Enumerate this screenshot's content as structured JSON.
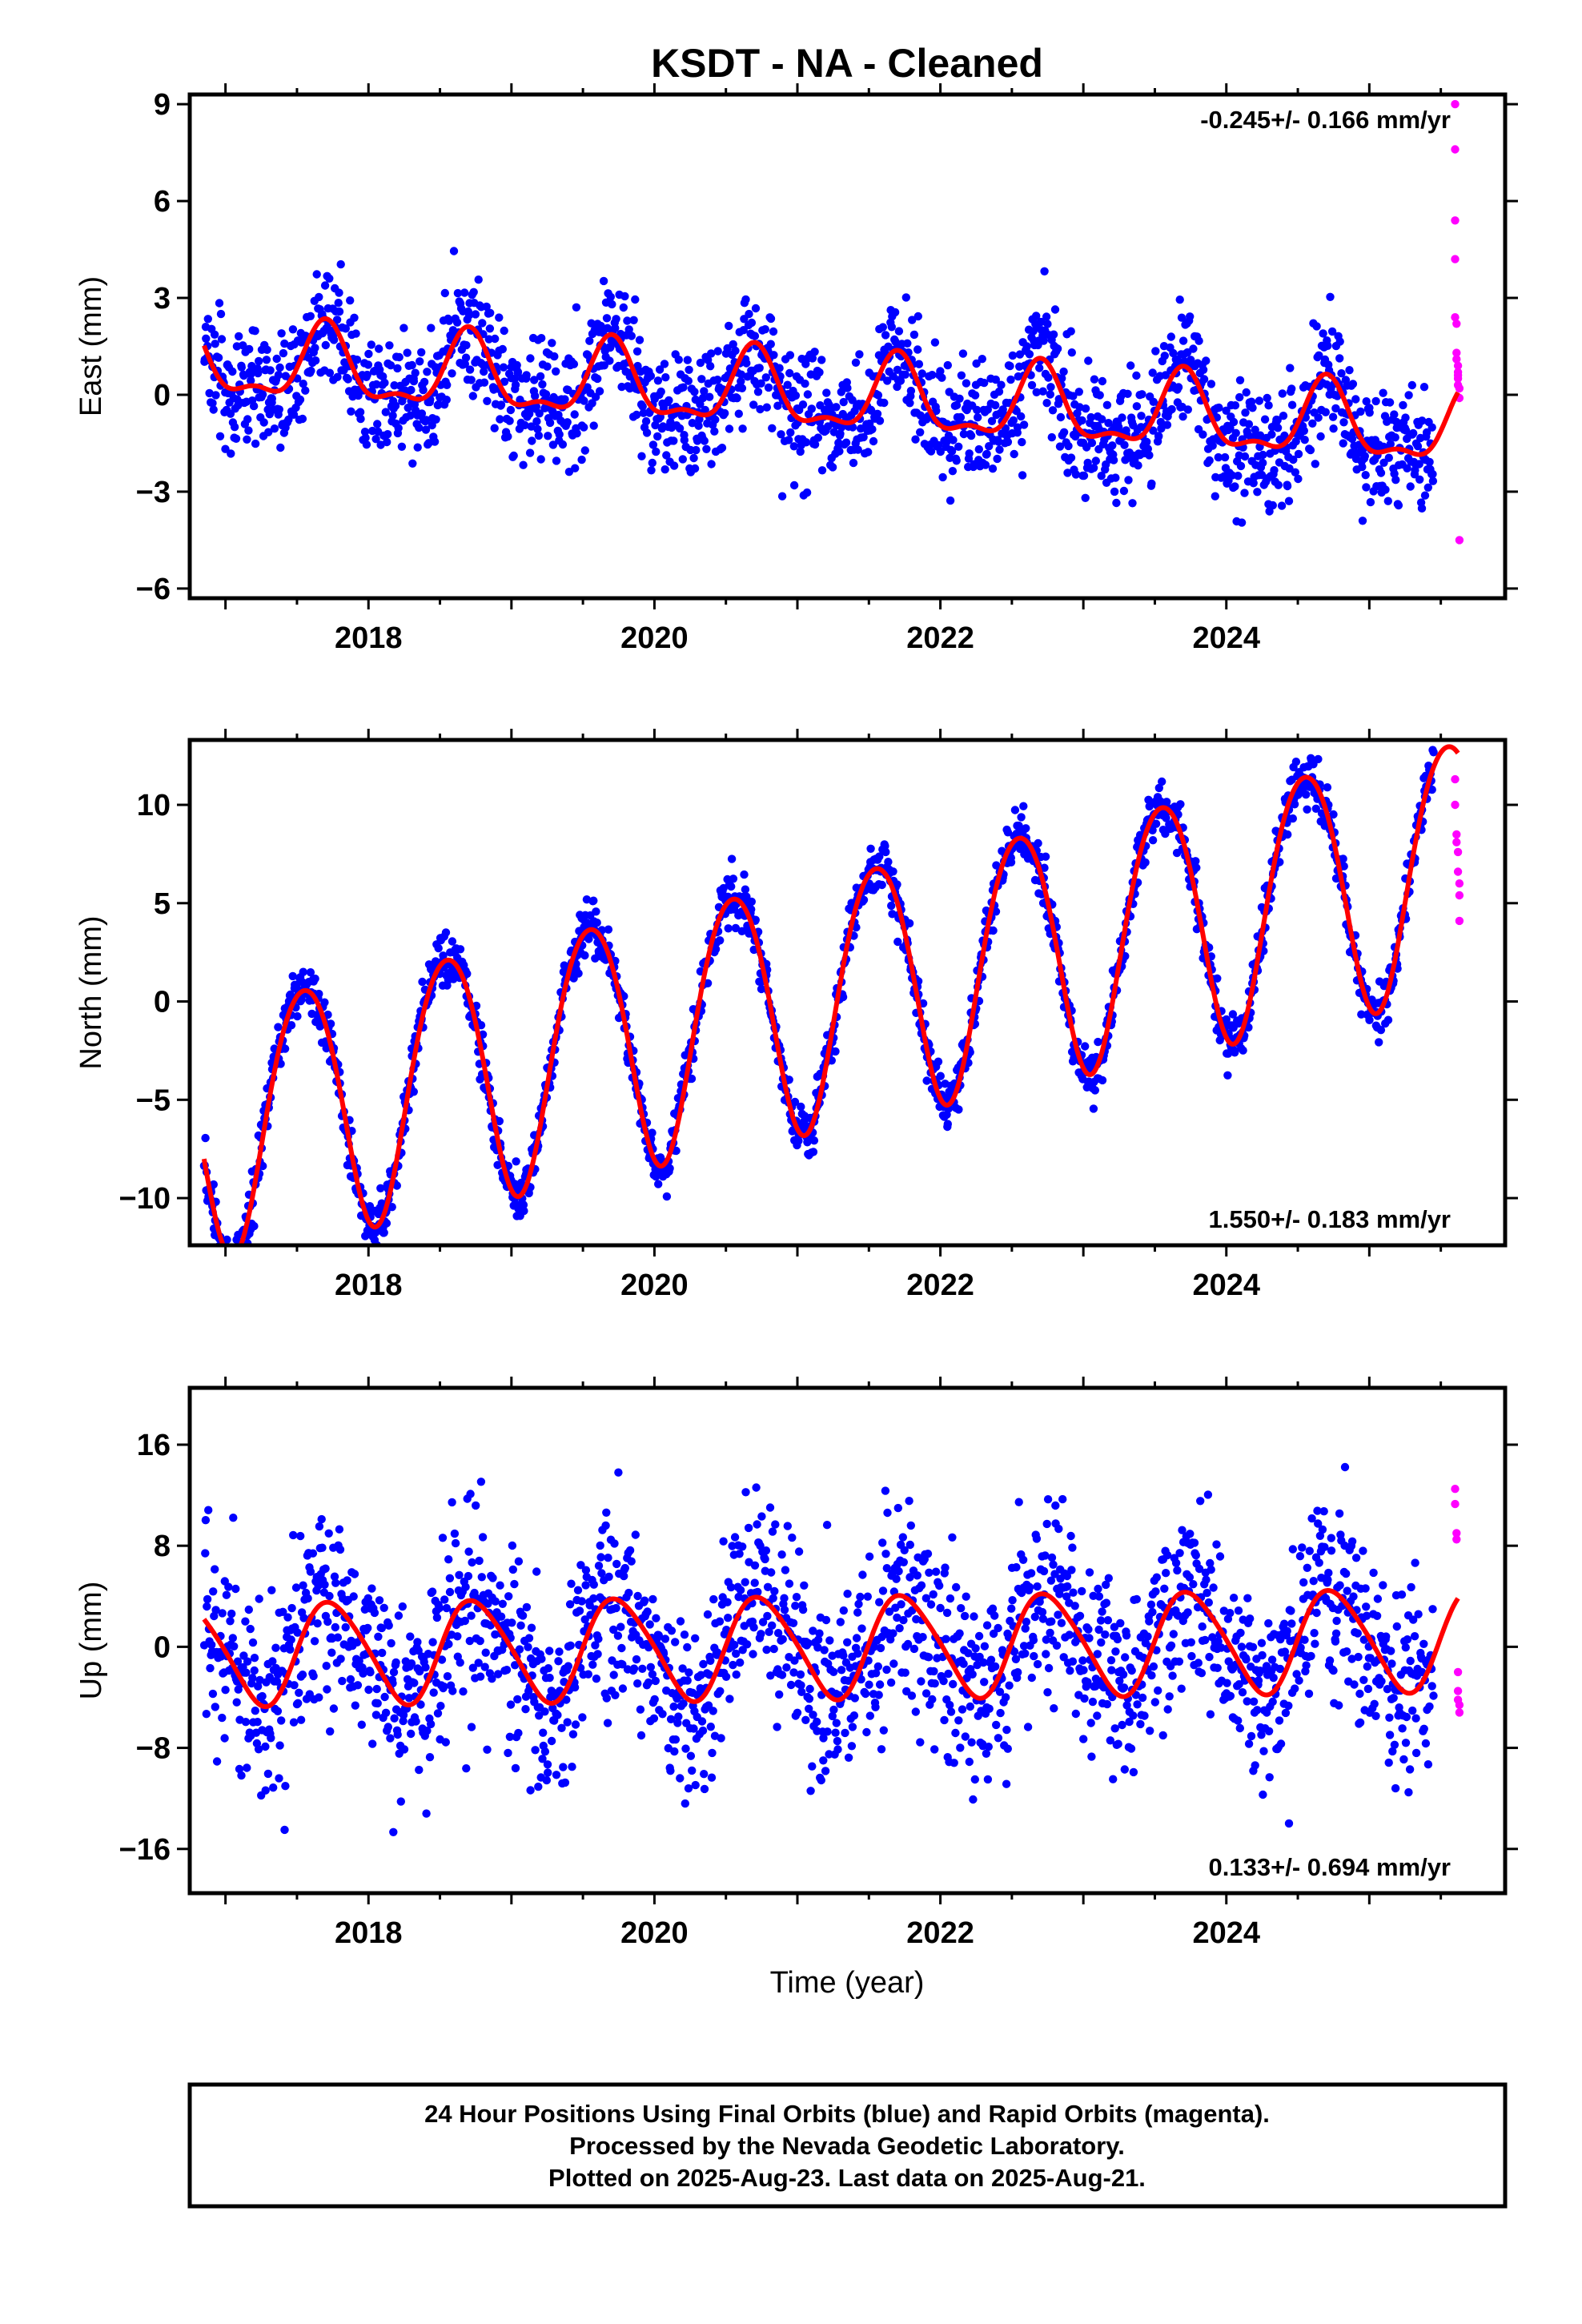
{
  "title": "KSDT  - NA - Cleaned",
  "x_axis_label": "Time (year)",
  "footer_lines": [
    "24 Hour Positions Using Final Orbits (blue) and Rapid Orbits (magenta).",
    "Processed by the Nevada Geodetic Laboratory.",
    "Plotted on 2025-Aug-23. Last data on 2025-Aug-21."
  ],
  "colors": {
    "final_orbits": "#0000ff",
    "rapid_orbits": "#ff00ff",
    "model_fit": "#ff0000",
    "frame": "#000000"
  },
  "chart_data": [
    {
      "type": "scatter",
      "id": "east",
      "ylabel": "East (mm)",
      "xlim": [
        2016.75,
        2025.95
      ],
      "ylim": [
        -6.3,
        9.3
      ],
      "x_ticks": [
        2018,
        2020,
        2022,
        2024
      ],
      "y_ticks": [
        -6,
        -3,
        0,
        3,
        6,
        9
      ],
      "y_tick_labels": [
        "−6",
        "−3",
        "0",
        "3",
        "6",
        "9"
      ],
      "rate_text": "-0.245+/- 0.166 mm/yr",
      "rate_position": "top-right",
      "model": {
        "rate": -0.245,
        "offset": 0.0,
        "annual_amp": 1.1,
        "annual_peak": 0.7,
        "semiannual_amp": 0.45,
        "semiannual_peak": 0.2
      },
      "series": [
        {
          "name": "Final Orbits (blue)",
          "x_range": [
            2016.85,
            2025.45
          ],
          "scatter_sd": 1.1
        },
        {
          "name": "Rapid Orbits (magenta)",
          "x": [
            2025.6,
            2025.6,
            2025.6,
            2025.6,
            2025.6,
            2025.61,
            2025.61,
            2025.61,
            2025.62,
            2025.62,
            2025.62,
            2025.62,
            2025.62,
            2025.63,
            2025.63,
            2025.63
          ],
          "y": [
            9.0,
            7.6,
            5.4,
            4.2,
            2.4,
            2.2,
            1.3,
            1.1,
            0.9,
            0.7,
            0.6,
            0.5,
            0.3,
            0.2,
            -0.1,
            -4.5
          ]
        }
      ]
    },
    {
      "type": "scatter",
      "id": "north",
      "ylabel": "North (mm)",
      "xlim": [
        2016.75,
        2025.95
      ],
      "ylim": [
        -12.4,
        13.3
      ],
      "x_ticks": [
        2018,
        2020,
        2022,
        2024
      ],
      "y_ticks": [
        -10,
        -5,
        0,
        5,
        10
      ],
      "y_tick_labels": [
        "−10",
        "−5",
        "0",
        "5",
        "10"
      ],
      "rate_text": "1.550+/- 0.183 mm/yr",
      "rate_position": "bottom-right",
      "model": {
        "rate": 1.55,
        "offset": 0.0,
        "annual_amp": 6.4,
        "annual_peak": 0.55,
        "semiannual_amp": 0.5,
        "semiannual_peak": 0.3
      },
      "series": [
        {
          "name": "Final Orbits (blue)",
          "x_range": [
            2016.85,
            2025.45
          ],
          "scatter_sd": 0.8
        },
        {
          "name": "Rapid Orbits (magenta)",
          "x": [
            2025.6,
            2025.6,
            2025.61,
            2025.61,
            2025.62,
            2025.62,
            2025.63,
            2025.63,
            2025.63
          ],
          "y": [
            11.3,
            10.0,
            8.5,
            8.1,
            7.6,
            6.6,
            6.0,
            5.4,
            4.1
          ]
        }
      ]
    },
    {
      "type": "scatter",
      "id": "up",
      "ylabel": "Up (mm)",
      "xlim": [
        2016.75,
        2025.95
      ],
      "ylim": [
        -19.5,
        20.5
      ],
      "x_ticks": [
        2018,
        2020,
        2022,
        2024
      ],
      "y_ticks": [
        -16,
        -8,
        0,
        8,
        16
      ],
      "y_tick_labels": [
        "−16",
        "−8",
        "0",
        "8",
        "16"
      ],
      "rate_text": "0.133+/- 0.694 mm/yr",
      "rate_position": "bottom-right",
      "model": {
        "rate": 0.133,
        "offset": 0.0,
        "annual_amp": 4.0,
        "annual_peak": 0.75,
        "semiannual_amp": 0.5,
        "semiannual_peak": 0.1
      },
      "series": [
        {
          "name": "Final Orbits (blue)",
          "x_range": [
            2016.85,
            2025.45
          ],
          "scatter_sd": 4.5
        },
        {
          "name": "Rapid Orbits (magenta)",
          "x": [
            2025.6,
            2025.6,
            2025.61,
            2025.61,
            2025.62,
            2025.62,
            2025.62,
            2025.63,
            2025.63
          ],
          "y": [
            12.5,
            11.3,
            9.0,
            8.5,
            -2.0,
            -3.5,
            -4.2,
            -4.6,
            -5.2
          ]
        }
      ]
    }
  ]
}
